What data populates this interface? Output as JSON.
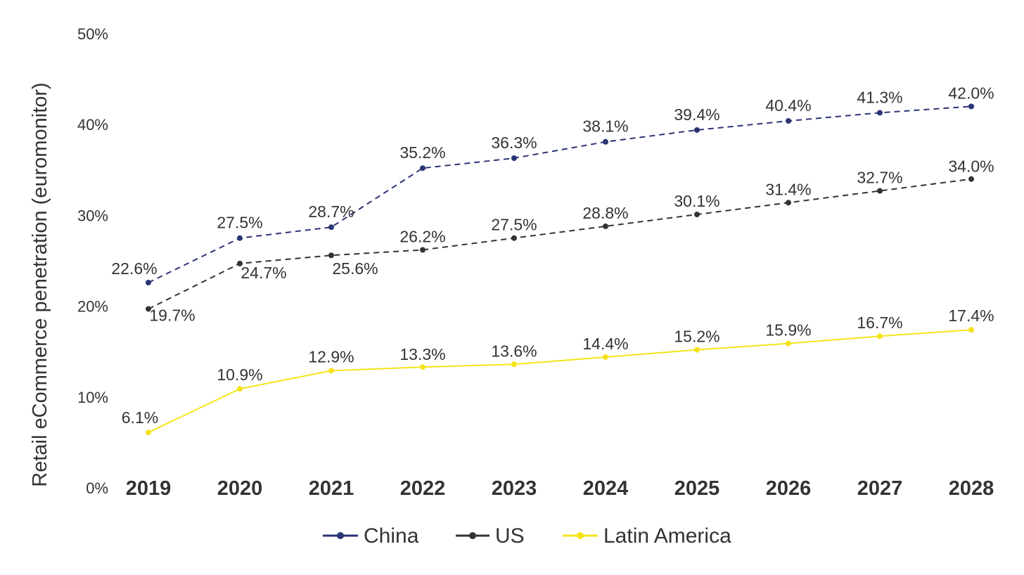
{
  "chart_data": {
    "type": "line",
    "title": "",
    "xlabel": "",
    "ylabel": "Retail eCommerce penetration (euromonitor)",
    "categories": [
      "2019",
      "2020",
      "2021",
      "2022",
      "2023",
      "2024",
      "2025",
      "2026",
      "2027",
      "2028"
    ],
    "ylim": [
      0,
      50
    ],
    "yticks": [
      "0%",
      "10%",
      "20%",
      "30%",
      "40%",
      "50%"
    ],
    "grid": false,
    "legend_position": "bottom",
    "series": [
      {
        "name": "China",
        "color": "#2b3475",
        "line_style": "dashed",
        "marker": "circle",
        "values": [
          22.6,
          27.5,
          28.7,
          35.2,
          36.3,
          38.1,
          39.4,
          40.4,
          41.3,
          42.0
        ],
        "labels": [
          "22.6%",
          "27.5%",
          "28.7%",
          "35.2%",
          "36.3%",
          "38.1%",
          "39.4%",
          "40.4%",
          "41.3%",
          "42.0%"
        ]
      },
      {
        "name": "US",
        "color": "#333333",
        "line_style": "dashed",
        "marker": "circle",
        "values": [
          19.7,
          24.7,
          25.6,
          26.2,
          27.5,
          28.8,
          30.1,
          31.4,
          32.7,
          34.0
        ],
        "labels": [
          "19.7%",
          "24.7%",
          "25.6%",
          "26.2%",
          "27.5%",
          "28.8%",
          "30.1%",
          "31.4%",
          "32.7%",
          "34.0%"
        ]
      },
      {
        "name": "Latin America",
        "color": "#f5e31a",
        "line_style": "solid",
        "marker": "circle",
        "values": [
          6.1,
          10.9,
          12.9,
          13.3,
          13.6,
          14.4,
          15.2,
          15.9,
          16.7,
          17.4
        ],
        "labels": [
          "6.1%",
          "10.9%",
          "12.9%",
          "13.3%",
          "13.6%",
          "14.4%",
          "15.2%",
          "15.9%",
          "16.7%",
          "17.4%"
        ]
      }
    ]
  }
}
